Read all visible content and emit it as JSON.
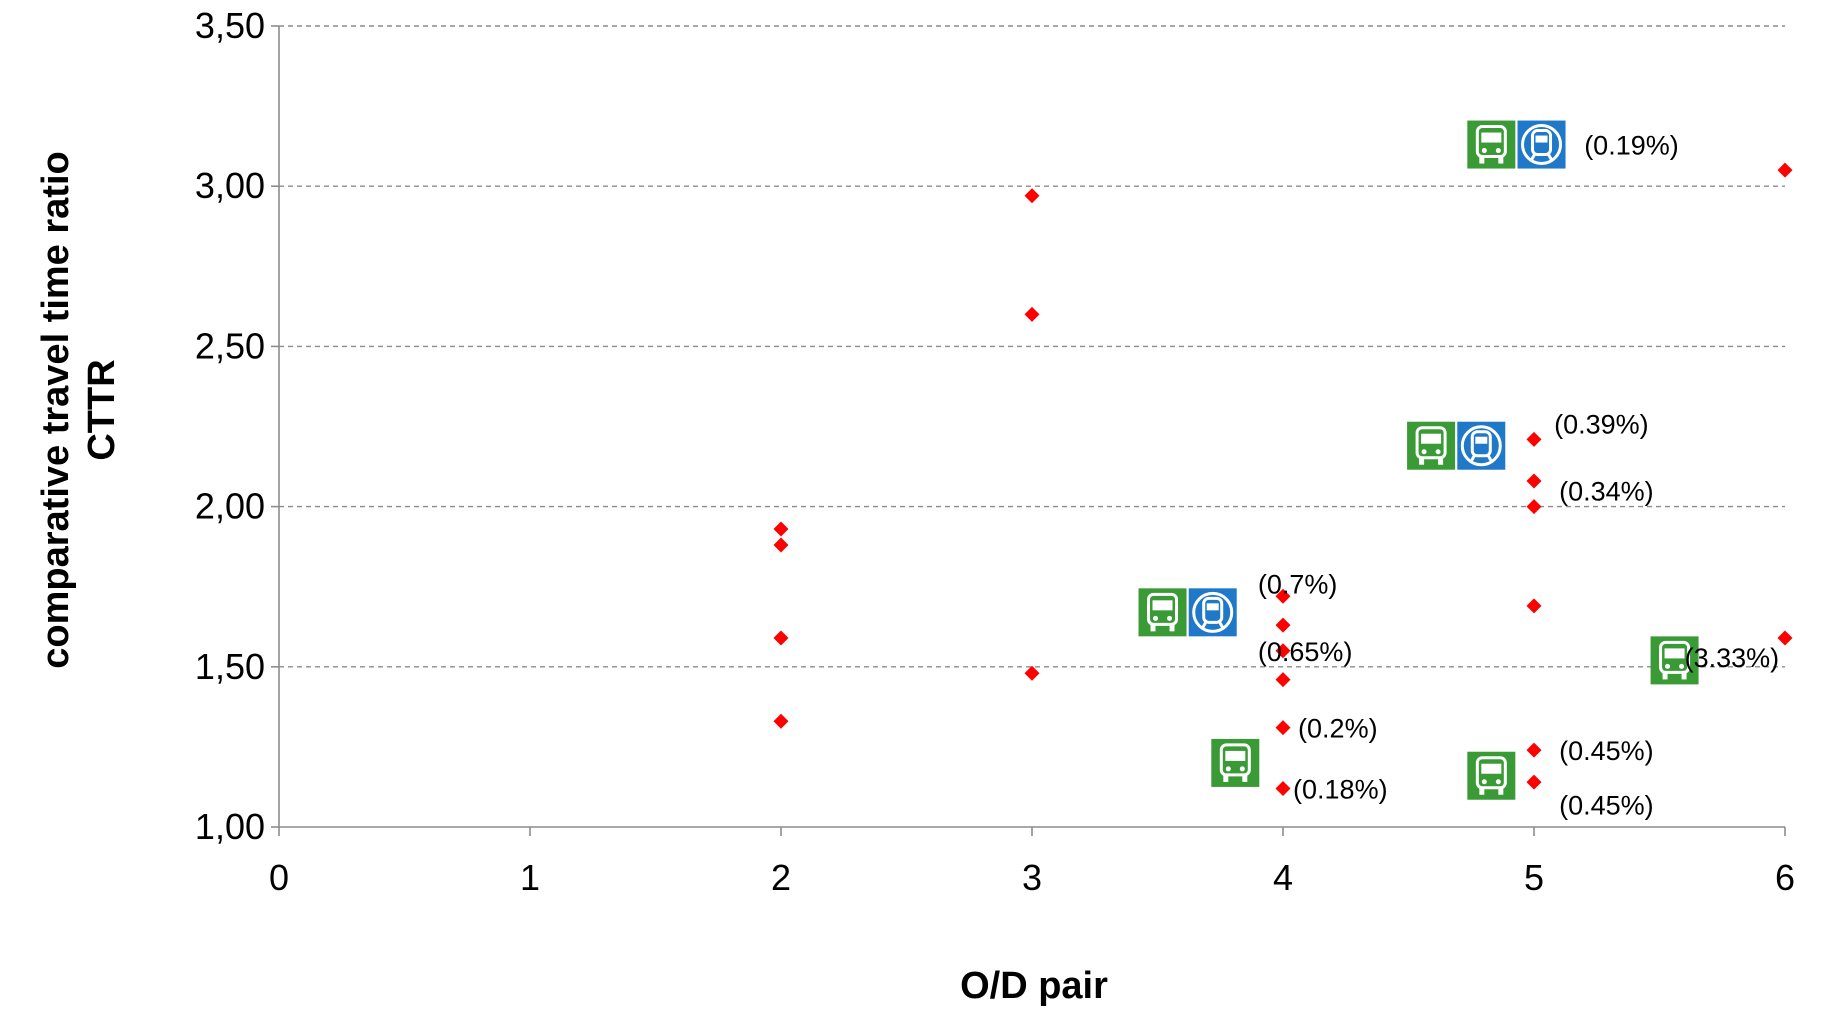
{
  "chart_data": {
    "type": "scatter",
    "xlabel": "O/D pair",
    "ylabel": [
      "comparative travel time ratio",
      "CTTR"
    ],
    "xlim": [
      0,
      6
    ],
    "ylim": [
      1.0,
      3.5
    ],
    "x_ticks": [
      "0",
      "1",
      "2",
      "3",
      "4",
      "5",
      "6"
    ],
    "y_ticks": [
      "1,00",
      "1,50",
      "2,00",
      "2,50",
      "3,00",
      "3,50"
    ],
    "grid": "horizontal dashed",
    "marker_color": "#ff0000",
    "points": [
      {
        "x": 2,
        "y": 1.93
      },
      {
        "x": 2,
        "y": 1.88
      },
      {
        "x": 2,
        "y": 1.59
      },
      {
        "x": 2,
        "y": 1.33
      },
      {
        "x": 3,
        "y": 2.97
      },
      {
        "x": 3,
        "y": 2.6
      },
      {
        "x": 3,
        "y": 1.48
      },
      {
        "x": 4,
        "y": 1.72
      },
      {
        "x": 4,
        "y": 1.63
      },
      {
        "x": 4,
        "y": 1.55
      },
      {
        "x": 4,
        "y": 1.46
      },
      {
        "x": 4,
        "y": 1.31
      },
      {
        "x": 4,
        "y": 1.12
      },
      {
        "x": 5,
        "y": 2.21
      },
      {
        "x": 5,
        "y": 2.08
      },
      {
        "x": 5,
        "y": 2.0
      },
      {
        "x": 5,
        "y": 1.69
      },
      {
        "x": 5,
        "y": 1.24
      },
      {
        "x": 5,
        "y": 1.14
      },
      {
        "x": 6,
        "y": 3.05
      },
      {
        "x": 6,
        "y": 1.59
      }
    ],
    "annotations": [
      {
        "text": "(0.19%)",
        "x": 5.2,
        "y": 3.13
      },
      {
        "text": "(0.39%)",
        "x": 5.08,
        "y": 2.26
      },
      {
        "text": "(0.34%)",
        "x": 5.1,
        "y": 2.05
      },
      {
        "text": "(0.7%)",
        "x": 3.9,
        "y": 1.76
      },
      {
        "text": "(0.65%)",
        "x": 3.9,
        "y": 1.55
      },
      {
        "text": "(3.33%)",
        "x": 5.6,
        "y": 1.53
      },
      {
        "text": "(0.2%)",
        "x": 4.06,
        "y": 1.31
      },
      {
        "text": "(0.45%)",
        "x": 5.1,
        "y": 1.24
      },
      {
        "text": "(0.18%)",
        "x": 4.04,
        "y": 1.12
      },
      {
        "text": "(0.45%)",
        "x": 5.1,
        "y": 1.07
      }
    ],
    "mode_icons": [
      {
        "icon": "bus-icon",
        "color": "#3a9a35",
        "x": 4.83,
        "y": 3.13
      },
      {
        "icon": "metro-icon",
        "color": "#1f78c8",
        "x": 5.03,
        "y": 3.13
      },
      {
        "icon": "bus-icon",
        "color": "#3a9a35",
        "x": 4.59,
        "y": 2.19
      },
      {
        "icon": "metro-icon",
        "color": "#1f78c8",
        "x": 4.79,
        "y": 2.19
      },
      {
        "icon": "bus-icon",
        "color": "#3a9a35",
        "x": 3.52,
        "y": 1.67
      },
      {
        "icon": "metro-icon",
        "color": "#1f78c8",
        "x": 3.72,
        "y": 1.67
      },
      {
        "icon": "bus-icon",
        "color": "#3a9a35",
        "x": 5.56,
        "y": 1.52
      },
      {
        "icon": "bus-icon",
        "color": "#3a9a35",
        "x": 3.81,
        "y": 1.2
      },
      {
        "icon": "bus-icon",
        "color": "#3a9a35",
        "x": 4.83,
        "y": 1.16
      }
    ]
  }
}
